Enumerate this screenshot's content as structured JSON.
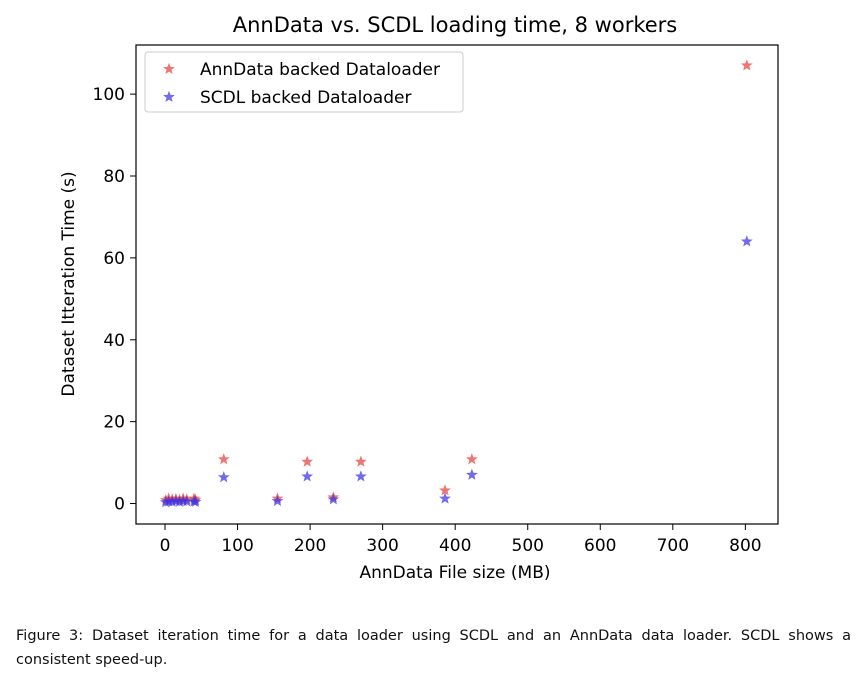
{
  "chart_data": {
    "type": "scatter",
    "title": "AnnData vs. SCDL loading time, 8 workers",
    "xlabel": "AnnData File size (MB)",
    "ylabel": "Dataset Itteration Time (s)",
    "xlim": [
      -40,
      845
    ],
    "ylim": [
      -5,
      112
    ],
    "xticks": [
      0,
      100,
      200,
      300,
      400,
      500,
      600,
      700,
      800
    ],
    "yticks": [
      0,
      20,
      40,
      60,
      80,
      100
    ],
    "grid": false,
    "legend_position": "top-left",
    "marker": "star",
    "series": [
      {
        "name": "AnnData backed Dataloader",
        "color": "#e8413c",
        "points": [
          [
            1,
            0.8
          ],
          [
            5,
            1.2
          ],
          [
            10,
            1.0
          ],
          [
            15,
            1.1
          ],
          [
            20,
            0.9
          ],
          [
            25,
            1.2
          ],
          [
            30,
            1.0
          ],
          [
            40,
            1.2
          ],
          [
            42,
            0.9
          ],
          [
            81,
            10.8
          ],
          [
            155,
            1.2
          ],
          [
            196,
            10.2
          ],
          [
            232,
            1.5
          ],
          [
            270,
            10.2
          ],
          [
            386,
            3.2
          ],
          [
            423,
            10.8
          ],
          [
            802,
            107
          ]
        ]
      },
      {
        "name": "SCDL backed Dataloader",
        "color": "#3a32e6",
        "points": [
          [
            1,
            0.3
          ],
          [
            5,
            0.5
          ],
          [
            10,
            0.4
          ],
          [
            15,
            0.6
          ],
          [
            20,
            0.4
          ],
          [
            25,
            0.6
          ],
          [
            30,
            0.5
          ],
          [
            40,
            0.5
          ],
          [
            42,
            0.4
          ],
          [
            81,
            6.4
          ],
          [
            155,
            0.6
          ],
          [
            196,
            6.6
          ],
          [
            232,
            1.0
          ],
          [
            270,
            6.6
          ],
          [
            386,
            1.2
          ],
          [
            423,
            7.0
          ],
          [
            802,
            64
          ]
        ]
      }
    ]
  },
  "caption": "Figure 3: Dataset iteration time for a data loader using SCDL and an AnnData data loader. SCDL shows a consistent speed-up."
}
